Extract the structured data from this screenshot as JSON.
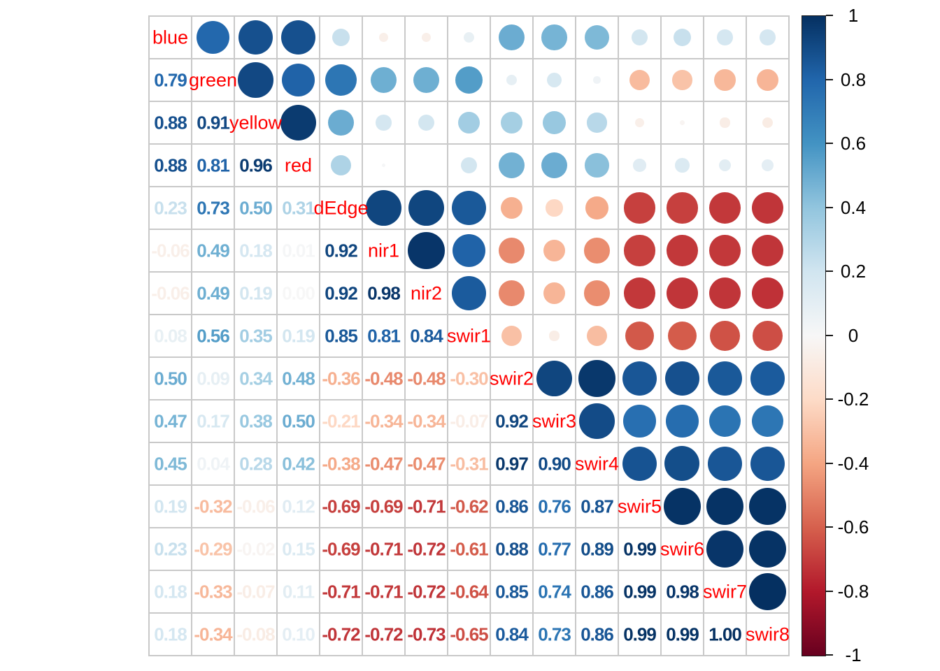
{
  "chart_data": {
    "type": "heatmap",
    "subtype": "correlation-matrix",
    "title": "",
    "variables": [
      "blue",
      "green",
      "yellow",
      "red",
      "dEdge",
      "nir1",
      "nir2",
      "swir1",
      "swir2",
      "swir3",
      "swir4",
      "swir5",
      "swir6",
      "swir7",
      "swir8"
    ],
    "matrix": [
      [
        1.0,
        0.79,
        0.88,
        0.88,
        0.23,
        -0.06,
        -0.06,
        0.08,
        0.5,
        0.47,
        0.45,
        0.19,
        0.23,
        0.18,
        0.18
      ],
      [
        0.79,
        1.0,
        0.91,
        0.81,
        0.73,
        0.49,
        0.49,
        0.56,
        0.09,
        0.17,
        0.04,
        -0.32,
        -0.29,
        -0.33,
        -0.34
      ],
      [
        0.88,
        0.91,
        1.0,
        0.96,
        0.5,
        0.18,
        0.19,
        0.35,
        0.34,
        0.38,
        0.28,
        -0.06,
        -0.02,
        -0.07,
        -0.08
      ],
      [
        0.88,
        0.81,
        0.96,
        1.0,
        0.31,
        0.01,
        0.0,
        0.19,
        0.48,
        0.5,
        0.42,
        0.12,
        0.15,
        0.11,
        0.1
      ],
      [
        0.23,
        0.73,
        0.5,
        0.31,
        1.0,
        0.92,
        0.92,
        0.85,
        -0.36,
        -0.21,
        -0.38,
        -0.69,
        -0.69,
        -0.71,
        -0.72
      ],
      [
        -0.06,
        0.49,
        0.18,
        0.01,
        0.92,
        1.0,
        0.98,
        0.81,
        -0.48,
        -0.34,
        -0.47,
        -0.69,
        -0.71,
        -0.71,
        -0.72
      ],
      [
        -0.06,
        0.49,
        0.19,
        0.0,
        0.92,
        0.98,
        1.0,
        0.84,
        -0.48,
        -0.34,
        -0.47,
        -0.71,
        -0.72,
        -0.72,
        -0.73
      ],
      [
        0.08,
        0.56,
        0.35,
        0.19,
        0.85,
        0.81,
        0.84,
        1.0,
        -0.3,
        -0.07,
        -0.31,
        -0.62,
        -0.61,
        -0.64,
        -0.65
      ],
      [
        0.5,
        0.09,
        0.34,
        0.48,
        -0.36,
        -0.48,
        -0.48,
        -0.3,
        1.0,
        0.92,
        0.97,
        0.86,
        0.88,
        0.85,
        0.84
      ],
      [
        0.47,
        0.17,
        0.38,
        0.5,
        -0.21,
        -0.34,
        -0.34,
        -0.07,
        0.92,
        1.0,
        0.9,
        0.76,
        0.77,
        0.74,
        0.73
      ],
      [
        0.45,
        0.04,
        0.28,
        0.42,
        -0.38,
        -0.47,
        -0.47,
        -0.31,
        0.97,
        0.9,
        1.0,
        0.87,
        0.89,
        0.86,
        0.86
      ],
      [
        0.19,
        -0.32,
        -0.06,
        0.12,
        -0.69,
        -0.69,
        -0.71,
        -0.62,
        0.86,
        0.76,
        0.87,
        1.0,
        0.99,
        0.99,
        0.99
      ],
      [
        0.23,
        -0.29,
        -0.02,
        0.15,
        -0.69,
        -0.71,
        -0.72,
        -0.61,
        0.88,
        0.77,
        0.89,
        0.99,
        1.0,
        0.98,
        0.99
      ],
      [
        0.18,
        -0.33,
        -0.07,
        0.11,
        -0.71,
        -0.71,
        -0.72,
        -0.64,
        0.85,
        0.74,
        0.86,
        0.99,
        0.98,
        1.0,
        1.0
      ],
      [
        0.18,
        -0.34,
        -0.08,
        0.1,
        -0.72,
        -0.72,
        -0.73,
        -0.65,
        0.84,
        0.73,
        0.86,
        0.99,
        0.99,
        1.0,
        1.0
      ]
    ],
    "lower_triangle_display": "numbers",
    "upper_triangle_display": "circles",
    "diagonal_display": "variable-names",
    "layout": {
      "grid": true,
      "legend_position": "right",
      "value_range": [
        -1,
        1
      ]
    },
    "colors": {
      "variable_label_color": "#FF0000",
      "grid_line_color": "#C9C9C9",
      "background": "#FFFFFF",
      "colorbar_border": "#1A1A1A",
      "tick_label_color": "#000000"
    },
    "palette_stops": [
      {
        "value": -1.0,
        "color": "#67001F"
      },
      {
        "value": -0.8,
        "color": "#B2182B"
      },
      {
        "value": -0.6,
        "color": "#D6604D"
      },
      {
        "value": -0.4,
        "color": "#F4A582"
      },
      {
        "value": -0.2,
        "color": "#FDDBC7"
      },
      {
        "value": 0.0,
        "color": "#F7F7F7"
      },
      {
        "value": 0.2,
        "color": "#D1E5F0"
      },
      {
        "value": 0.4,
        "color": "#92C5DE"
      },
      {
        "value": 0.6,
        "color": "#4393C3"
      },
      {
        "value": 0.8,
        "color": "#2166AC"
      },
      {
        "value": 1.0,
        "color": "#053061"
      }
    ],
    "colorbar": {
      "min": -1,
      "max": 1,
      "tick_labels": [
        "1",
        "0.8",
        "0.6",
        "0.4",
        "0.2",
        "0",
        "-0.2",
        "-0.4",
        "-0.6",
        "-0.8",
        "-1"
      ]
    }
  }
}
